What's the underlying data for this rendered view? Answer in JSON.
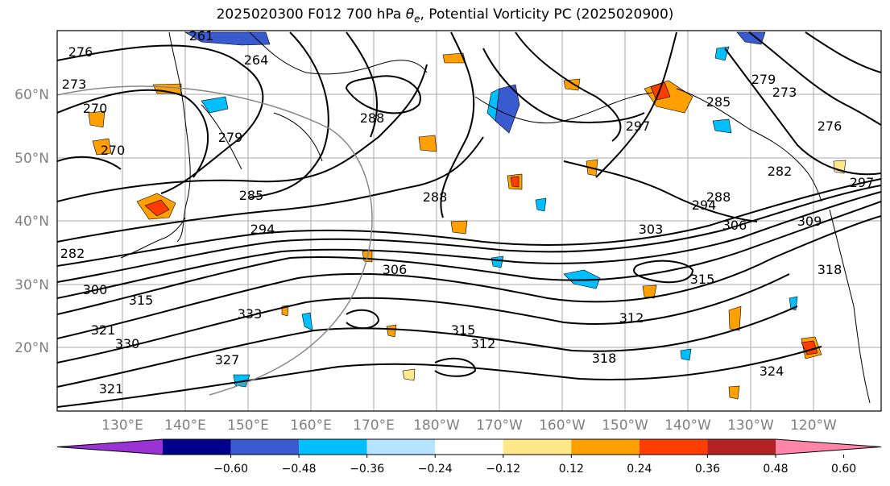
{
  "title": "2025020300 F012 700 hPa θe, Potential Vorticity PC (2025020900)",
  "title_parts": {
    "prefix": "2025020300 F012 700 hPa ",
    "theta": "θ",
    "sub": "e",
    "suffix": ", Potential Vorticity PC (2025020900)"
  },
  "lat_labels": [
    "60°N",
    "50°N",
    "40°N",
    "30°N",
    "20°N"
  ],
  "lon_labels": [
    "130°E",
    "140°E",
    "150°E",
    "160°E",
    "170°E",
    "180°W",
    "170°W",
    "160°W",
    "150°W",
    "140°W",
    "130°W",
    "120°W"
  ],
  "colorbar": {
    "colors": [
      "#9a33d4",
      "#00008b",
      "#3a5ad0",
      "#00bfff",
      "#b4e4ff",
      "#ffffff",
      "#ffe88a",
      "#ffa000",
      "#ff3d00",
      "#b22222",
      "#ff85a8"
    ],
    "ticks": [
      "−0.60",
      "−0.48",
      "−0.36",
      "−0.24",
      "−0.12",
      "0.12",
      "0.24",
      "0.36",
      "0.48",
      "0.60"
    ]
  },
  "contour_labels": [
    "276",
    "273",
    "264",
    "270",
    "261",
    "270",
    "279",
    "285",
    "288",
    "294",
    "282",
    "288",
    "300",
    "306",
    "315",
    "303",
    "306",
    "309",
    "315",
    "318",
    "321",
    "327",
    "330",
    "333",
    "312",
    "315",
    "318",
    "321",
    "324",
    "297",
    "285",
    "279",
    "273",
    "276",
    "282",
    "288",
    "294",
    "297",
    "312"
  ]
}
